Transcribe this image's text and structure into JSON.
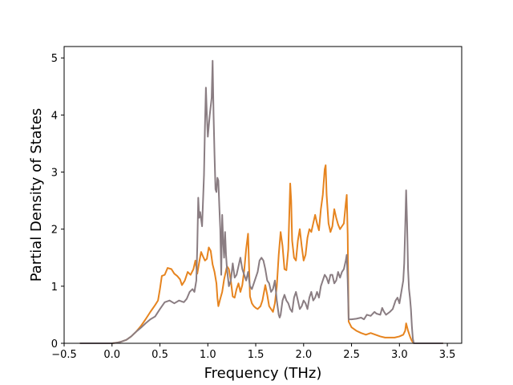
{
  "chart_data": {
    "type": "line",
    "title": "",
    "xlabel": "Frequency (THz)",
    "ylabel": "Partial Density of States",
    "xlim": [
      -0.5,
      3.65
    ],
    "ylim": [
      0,
      5.2
    ],
    "xticks": [
      -0.5,
      0.0,
      0.5,
      1.0,
      1.5,
      2.0,
      2.5,
      3.0,
      3.5
    ],
    "xtick_labels": [
      "−0.5",
      "0.0",
      "0.5",
      "1.0",
      "1.5",
      "2.0",
      "2.5",
      "3.0",
      "3.5"
    ],
    "yticks": [
      0,
      1,
      2,
      3,
      4,
      5
    ],
    "ytick_labels": [
      "0",
      "1",
      "2",
      "3",
      "4",
      "5"
    ],
    "grid": false,
    "legend": "none",
    "series": [
      {
        "color": "#e6841f",
        "points": [
          [
            -0.33,
            0
          ],
          [
            0.0,
            0
          ],
          [
            0.05,
            0.01
          ],
          [
            0.1,
            0.03
          ],
          [
            0.15,
            0.06
          ],
          [
            0.2,
            0.12
          ],
          [
            0.25,
            0.2
          ],
          [
            0.3,
            0.3
          ],
          [
            0.35,
            0.42
          ],
          [
            0.4,
            0.55
          ],
          [
            0.45,
            0.67
          ],
          [
            0.48,
            0.75
          ],
          [
            0.5,
            0.95
          ],
          [
            0.52,
            1.18
          ],
          [
            0.55,
            1.2
          ],
          [
            0.58,
            1.32
          ],
          [
            0.62,
            1.3
          ],
          [
            0.65,
            1.22
          ],
          [
            0.68,
            1.18
          ],
          [
            0.71,
            1.12
          ],
          [
            0.73,
            1.02
          ],
          [
            0.76,
            1.1
          ],
          [
            0.79,
            1.25
          ],
          [
            0.82,
            1.2
          ],
          [
            0.85,
            1.3
          ],
          [
            0.87,
            1.45
          ],
          [
            0.89,
            1.22
          ],
          [
            0.91,
            1.42
          ],
          [
            0.93,
            1.6
          ],
          [
            0.95,
            1.52
          ],
          [
            0.97,
            1.45
          ],
          [
            0.99,
            1.48
          ],
          [
            1.01,
            1.68
          ],
          [
            1.03,
            1.62
          ],
          [
            1.05,
            1.38
          ],
          [
            1.07,
            1.25
          ],
          [
            1.09,
            1.05
          ],
          [
            1.1,
            0.8
          ],
          [
            1.11,
            0.65
          ],
          [
            1.13,
            0.78
          ],
          [
            1.15,
            0.9
          ],
          [
            1.17,
            1.12
          ],
          [
            1.2,
            1.35
          ],
          [
            1.22,
            1.3
          ],
          [
            1.24,
            1.1
          ],
          [
            1.26,
            0.82
          ],
          [
            1.28,
            0.8
          ],
          [
            1.3,
            0.95
          ],
          [
            1.32,
            1.05
          ],
          [
            1.34,
            0.9
          ],
          [
            1.36,
            1.02
          ],
          [
            1.38,
            1.28
          ],
          [
            1.4,
            1.65
          ],
          [
            1.42,
            1.92
          ],
          [
            1.44,
            0.82
          ],
          [
            1.46,
            0.7
          ],
          [
            1.48,
            0.65
          ],
          [
            1.5,
            0.62
          ],
          [
            1.52,
            0.6
          ],
          [
            1.55,
            0.65
          ],
          [
            1.57,
            0.75
          ],
          [
            1.6,
            1.02
          ],
          [
            1.62,
            0.85
          ],
          [
            1.64,
            0.65
          ],
          [
            1.66,
            0.6
          ],
          [
            1.68,
            0.55
          ],
          [
            1.7,
            0.7
          ],
          [
            1.72,
            1.0
          ],
          [
            1.74,
            1.55
          ],
          [
            1.76,
            1.95
          ],
          [
            1.78,
            1.7
          ],
          [
            1.8,
            1.3
          ],
          [
            1.82,
            1.28
          ],
          [
            1.84,
            1.65
          ],
          [
            1.86,
            2.8
          ],
          [
            1.87,
            2.5
          ],
          [
            1.88,
            1.8
          ],
          [
            1.9,
            1.5
          ],
          [
            1.92,
            1.45
          ],
          [
            1.94,
            1.8
          ],
          [
            1.96,
            2.0
          ],
          [
            1.98,
            1.7
          ],
          [
            2.0,
            1.45
          ],
          [
            2.02,
            1.55
          ],
          [
            2.04,
            1.85
          ],
          [
            2.06,
            2.0
          ],
          [
            2.08,
            1.95
          ],
          [
            2.1,
            2.1
          ],
          [
            2.12,
            2.25
          ],
          [
            2.14,
            2.1
          ],
          [
            2.16,
            1.98
          ],
          [
            2.18,
            2.35
          ],
          [
            2.2,
            2.6
          ],
          [
            2.22,
            3.05
          ],
          [
            2.23,
            3.12
          ],
          [
            2.24,
            2.6
          ],
          [
            2.26,
            2.1
          ],
          [
            2.28,
            1.95
          ],
          [
            2.3,
            2.05
          ],
          [
            2.32,
            2.35
          ],
          [
            2.34,
            2.2
          ],
          [
            2.36,
            2.08
          ],
          [
            2.38,
            2.0
          ],
          [
            2.4,
            2.05
          ],
          [
            2.42,
            2.1
          ],
          [
            2.44,
            2.45
          ],
          [
            2.45,
            2.6
          ],
          [
            2.46,
            1.9
          ],
          [
            2.47,
            0.38
          ],
          [
            2.5,
            0.28
          ],
          [
            2.55,
            0.22
          ],
          [
            2.6,
            0.18
          ],
          [
            2.65,
            0.15
          ],
          [
            2.7,
            0.18
          ],
          [
            2.75,
            0.15
          ],
          [
            2.8,
            0.12
          ],
          [
            2.85,
            0.1
          ],
          [
            2.9,
            0.1
          ],
          [
            2.95,
            0.1
          ],
          [
            3.0,
            0.12
          ],
          [
            3.04,
            0.15
          ],
          [
            3.06,
            0.22
          ],
          [
            3.07,
            0.35
          ],
          [
            3.09,
            0.22
          ],
          [
            3.11,
            0.12
          ],
          [
            3.13,
            0.04
          ],
          [
            3.15,
            0
          ],
          [
            3.45,
            0
          ]
        ]
      },
      {
        "color": "#8a7d82",
        "points": [
          [
            -0.33,
            0
          ],
          [
            0.0,
            0
          ],
          [
            0.05,
            0.01
          ],
          [
            0.1,
            0.03
          ],
          [
            0.15,
            0.06
          ],
          [
            0.2,
            0.12
          ],
          [
            0.25,
            0.2
          ],
          [
            0.3,
            0.27
          ],
          [
            0.35,
            0.35
          ],
          [
            0.4,
            0.42
          ],
          [
            0.45,
            0.47
          ],
          [
            0.5,
            0.6
          ],
          [
            0.55,
            0.72
          ],
          [
            0.6,
            0.75
          ],
          [
            0.65,
            0.7
          ],
          [
            0.7,
            0.75
          ],
          [
            0.75,
            0.72
          ],
          [
            0.78,
            0.78
          ],
          [
            0.81,
            0.9
          ],
          [
            0.84,
            0.95
          ],
          [
            0.86,
            0.9
          ],
          [
            0.88,
            1.1
          ],
          [
            0.89,
            1.7
          ],
          [
            0.9,
            2.55
          ],
          [
            0.91,
            2.2
          ],
          [
            0.92,
            2.3
          ],
          [
            0.94,
            2.05
          ],
          [
            0.96,
            2.95
          ],
          [
            0.97,
            3.8
          ],
          [
            0.98,
            4.48
          ],
          [
            0.99,
            4.0
          ],
          [
            1.0,
            3.62
          ],
          [
            1.02,
            4.0
          ],
          [
            1.04,
            4.3
          ],
          [
            1.05,
            4.95
          ],
          [
            1.06,
            4.0
          ],
          [
            1.07,
            3.3
          ],
          [
            1.08,
            2.7
          ],
          [
            1.09,
            2.65
          ],
          [
            1.1,
            2.9
          ],
          [
            1.11,
            2.85
          ],
          [
            1.12,
            2.4
          ],
          [
            1.13,
            2.0
          ],
          [
            1.14,
            1.2
          ],
          [
            1.15,
            2.25
          ],
          [
            1.16,
            1.8
          ],
          [
            1.17,
            1.5
          ],
          [
            1.18,
            1.95
          ],
          [
            1.19,
            1.55
          ],
          [
            1.2,
            1.3
          ],
          [
            1.22,
            1.0
          ],
          [
            1.24,
            1.1
          ],
          [
            1.26,
            1.4
          ],
          [
            1.28,
            1.15
          ],
          [
            1.3,
            1.2
          ],
          [
            1.32,
            1.35
          ],
          [
            1.34,
            1.5
          ],
          [
            1.36,
            1.3
          ],
          [
            1.38,
            1.2
          ],
          [
            1.4,
            1.1
          ],
          [
            1.42,
            1.25
          ],
          [
            1.44,
            1.0
          ],
          [
            1.46,
            0.95
          ],
          [
            1.48,
            1.05
          ],
          [
            1.5,
            1.15
          ],
          [
            1.52,
            1.25
          ],
          [
            1.54,
            1.45
          ],
          [
            1.56,
            1.5
          ],
          [
            1.58,
            1.45
          ],
          [
            1.6,
            1.3
          ],
          [
            1.62,
            1.1
          ],
          [
            1.64,
            1.05
          ],
          [
            1.66,
            0.9
          ],
          [
            1.68,
            0.95
          ],
          [
            1.7,
            1.1
          ],
          [
            1.72,
            0.75
          ],
          [
            1.74,
            0.5
          ],
          [
            1.75,
            0.45
          ],
          [
            1.76,
            0.5
          ],
          [
            1.78,
            0.75
          ],
          [
            1.8,
            0.85
          ],
          [
            1.82,
            0.75
          ],
          [
            1.84,
            0.7
          ],
          [
            1.86,
            0.6
          ],
          [
            1.88,
            0.55
          ],
          [
            1.9,
            0.8
          ],
          [
            1.92,
            0.9
          ],
          [
            1.94,
            0.75
          ],
          [
            1.96,
            0.6
          ],
          [
            1.98,
            0.65
          ],
          [
            2.0,
            0.75
          ],
          [
            2.02,
            0.7
          ],
          [
            2.04,
            0.6
          ],
          [
            2.06,
            0.8
          ],
          [
            2.08,
            0.9
          ],
          [
            2.1,
            0.75
          ],
          [
            2.12,
            0.8
          ],
          [
            2.14,
            0.9
          ],
          [
            2.16,
            0.8
          ],
          [
            2.18,
            1.0
          ],
          [
            2.2,
            1.1
          ],
          [
            2.22,
            1.2
          ],
          [
            2.24,
            1.15
          ],
          [
            2.26,
            1.05
          ],
          [
            2.28,
            1.2
          ],
          [
            2.3,
            1.2
          ],
          [
            2.32,
            1.05
          ],
          [
            2.34,
            1.1
          ],
          [
            2.36,
            1.25
          ],
          [
            2.38,
            1.15
          ],
          [
            2.4,
            1.25
          ],
          [
            2.42,
            1.3
          ],
          [
            2.44,
            1.45
          ],
          [
            2.45,
            1.55
          ],
          [
            2.46,
            1.1
          ],
          [
            2.47,
            0.42
          ],
          [
            2.5,
            0.42
          ],
          [
            2.55,
            0.43
          ],
          [
            2.6,
            0.45
          ],
          [
            2.63,
            0.42
          ],
          [
            2.66,
            0.5
          ],
          [
            2.7,
            0.48
          ],
          [
            2.74,
            0.55
          ],
          [
            2.76,
            0.52
          ],
          [
            2.8,
            0.5
          ],
          [
            2.82,
            0.62
          ],
          [
            2.84,
            0.55
          ],
          [
            2.86,
            0.5
          ],
          [
            2.9,
            0.55
          ],
          [
            2.93,
            0.6
          ],
          [
            2.96,
            0.75
          ],
          [
            2.98,
            0.8
          ],
          [
            3.0,
            0.7
          ],
          [
            3.02,
            0.9
          ],
          [
            3.04,
            1.1
          ],
          [
            3.05,
            1.4
          ],
          [
            3.06,
            2.0
          ],
          [
            3.07,
            2.68
          ],
          [
            3.08,
            2.1
          ],
          [
            3.09,
            1.3
          ],
          [
            3.1,
            0.95
          ],
          [
            3.11,
            0.8
          ],
          [
            3.12,
            0.6
          ],
          [
            3.13,
            0.3
          ],
          [
            3.14,
            0.08
          ],
          [
            3.15,
            0
          ],
          [
            3.45,
            0
          ]
        ]
      }
    ]
  }
}
